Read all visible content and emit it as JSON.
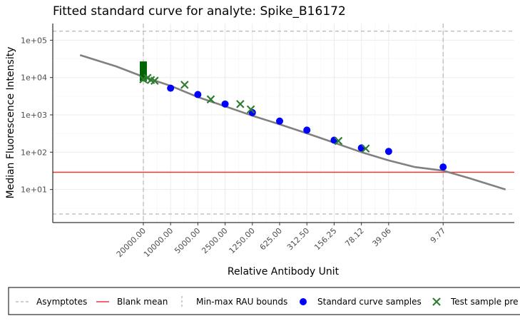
{
  "chart_data": {
    "type": "scatter",
    "title": "Fitted standard curve for analyte: Spike_B16172",
    "xlabel": "Relative Antibody Unit",
    "ylabel": "Median Fluorescence Intensity",
    "x_scale": "log-reversed",
    "y_scale": "log10",
    "x_ticks": [
      "20000.00",
      "10000.00",
      "5000.00",
      "2500.00",
      "1250.00",
      "625.00",
      "312.50",
      "156.25",
      "78.12",
      "39.06",
      "9.77"
    ],
    "y_ticks": [
      "1e+01",
      "1e+02",
      "1e+03",
      "1e+04",
      "1e+05"
    ],
    "xlim": [
      200000,
      1.6
    ],
    "ylim": [
      1.3,
      280000
    ],
    "grid": true,
    "asymptotes": [
      2.2,
      175000
    ],
    "blank_mean": 29,
    "rau_bounds": [
      20000,
      9.77
    ],
    "fitted_curve": {
      "x": [
        100000,
        40000,
        20000,
        10000,
        5000,
        2500,
        1250,
        625,
        312.5,
        156.25,
        78.12,
        39.06,
        20,
        9.77,
        5,
        2
      ],
      "y": [
        40000,
        20000,
        10500,
        6000,
        3000,
        1700,
        950,
        560,
        320,
        180,
        100,
        60,
        40,
        32,
        20,
        10
      ]
    },
    "series": [
      {
        "name": "Standard curve samples",
        "color": "#0000ff",
        "marker": "circle",
        "x": [
          10000,
          5000,
          2500,
          1250,
          625,
          312.5,
          156.25,
          78.12,
          39.06,
          9.77
        ],
        "y": [
          5200,
          3500,
          1950,
          1150,
          680,
          390,
          210,
          130,
          105,
          40
        ]
      },
      {
        "name": "Test sample predictions",
        "color": "#2e7d32",
        "marker": "x",
        "x": [
          20000,
          18000,
          16500,
          15000,
          7000,
          3600,
          1700,
          1300,
          140,
          70
        ],
        "y": [
          9000,
          9800,
          8600,
          8200,
          6400,
          2600,
          1950,
          1400,
          200,
          125
        ]
      }
    ],
    "green_bar": {
      "x": 20000,
      "y_low": 8000,
      "y_high": 27000,
      "color": "#006400"
    },
    "legend": {
      "position": "bottom",
      "entries": [
        "Asymptotes",
        "Blank mean",
        "Min-max RAU bounds",
        "Standard curve samples",
        "Test sample pre"
      ]
    },
    "colors": {
      "curve": "#808080",
      "asymptote": "#bdbdbd",
      "blank_mean": "#e53935",
      "bounds": "#bdbdbd",
      "grid": "#ebebeb"
    }
  }
}
